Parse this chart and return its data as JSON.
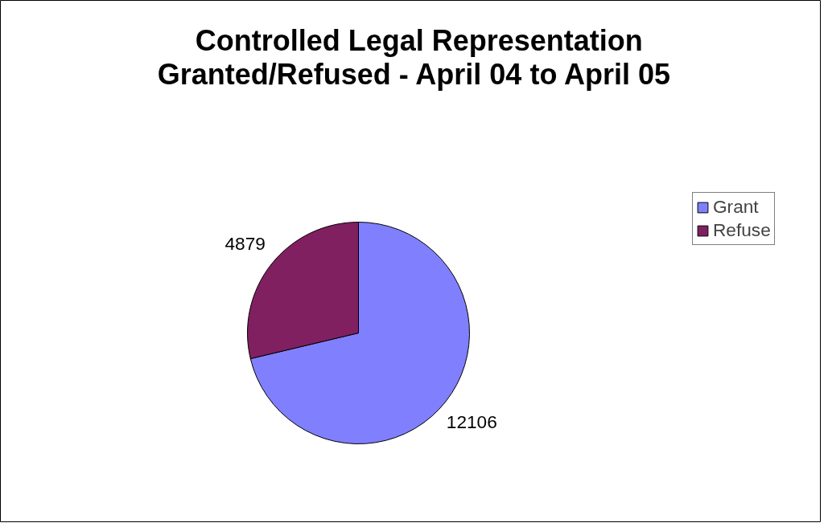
{
  "chart_data": {
    "type": "pie",
    "title": "Controlled Legal Representation\nGranted/Refused  - April 04 to April 05",
    "categories": [
      "Grant",
      "Refuse"
    ],
    "values": [
      12106,
      4879
    ],
    "colors": [
      "#8080ff",
      "#802060"
    ],
    "data_labels": true,
    "legend": "right"
  }
}
